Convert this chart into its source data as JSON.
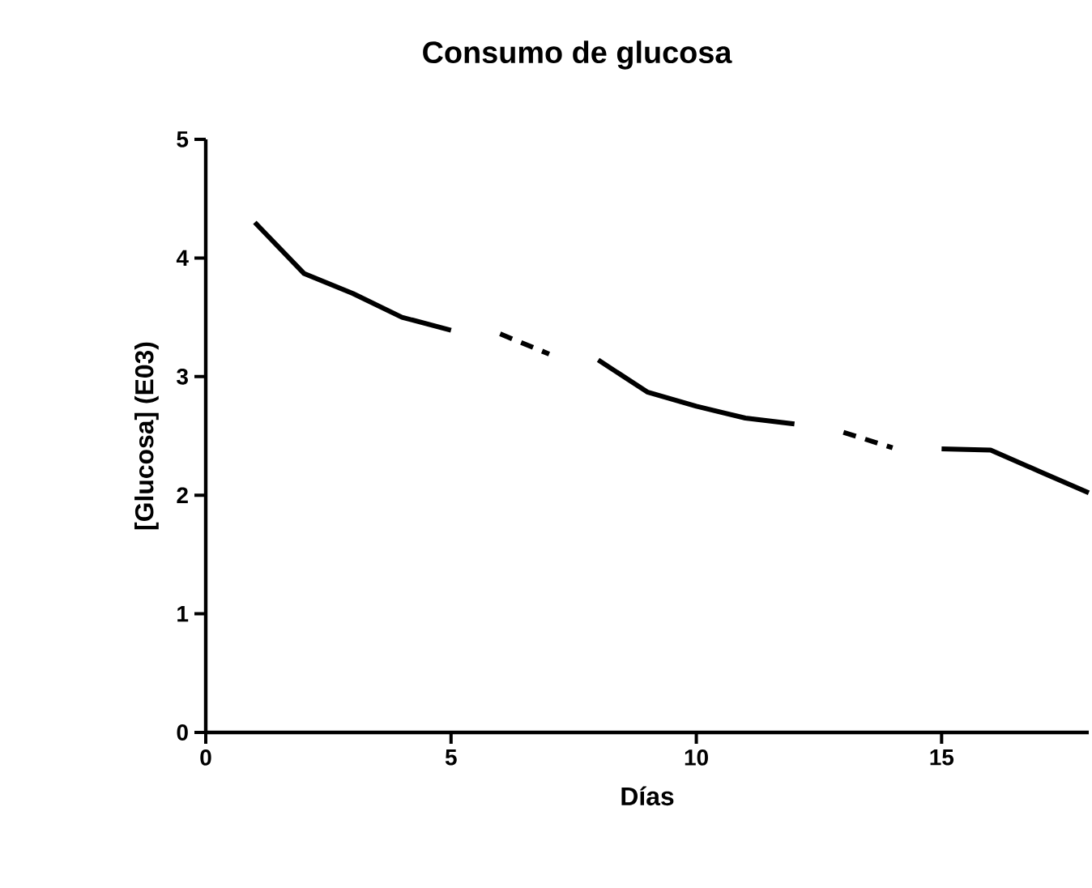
{
  "chart_data": {
    "type": "line",
    "title": "Consumo de glucosa",
    "xlabel": "Días",
    "ylabel": "[Glucosa] (E03)",
    "xlim": [
      0,
      18
    ],
    "xticks": [
      0,
      5,
      10,
      15
    ],
    "ylim": [
      0,
      5
    ],
    "yticks": [
      0,
      1,
      2,
      3,
      4,
      5
    ],
    "grid": false,
    "marker": "none",
    "series": [
      {
        "color": "#000000",
        "line_style": "solid",
        "x": [
          1,
          2,
          3,
          4,
          5,
          6,
          7,
          8,
          9,
          10,
          11,
          12,
          13,
          14,
          15,
          16,
          17,
          18
        ],
        "values": [
          4.3,
          3.87,
          3.7,
          3.5,
          3.39,
          null,
          null,
          3.14,
          2.87,
          2.75,
          2.65,
          2.6,
          null,
          null,
          2.39,
          2.38,
          2.2,
          2.02
        ]
      },
      {
        "color": "#000000",
        "line_style": "dashed",
        "x": [
          6,
          7,
          13,
          14
        ],
        "values": [
          3.36,
          3.19,
          2.53,
          2.4
        ]
      }
    ]
  }
}
